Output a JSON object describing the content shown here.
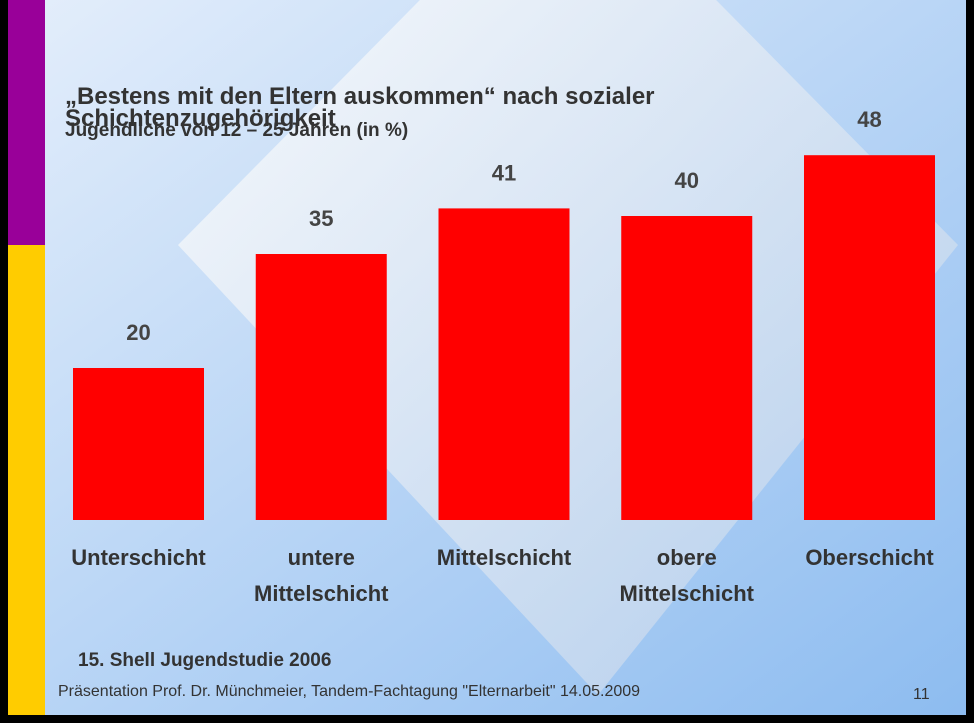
{
  "chart_data": {
    "type": "bar",
    "title": "„Bestens mit den Eltern auskommen“ nach sozialer Schichtenzugehörigkeit",
    "subtitle": "Jugendliche von 12 – 25 Jahren (in %)",
    "categories": [
      "Unterschicht",
      "untere Mittelschicht",
      "Mittelschicht",
      "obere Mittelschicht",
      "Oberschicht"
    ],
    "values": [
      20,
      35,
      41,
      40,
      48
    ],
    "color": "#ff0000",
    "source": "15. Shell Jugendstudie 2006",
    "footer": "Präsentation Prof. Dr. Münchmeier, Tandem-Fachtagung \"Elternarbeit\" 14.05.2009",
    "page_number": "11"
  }
}
